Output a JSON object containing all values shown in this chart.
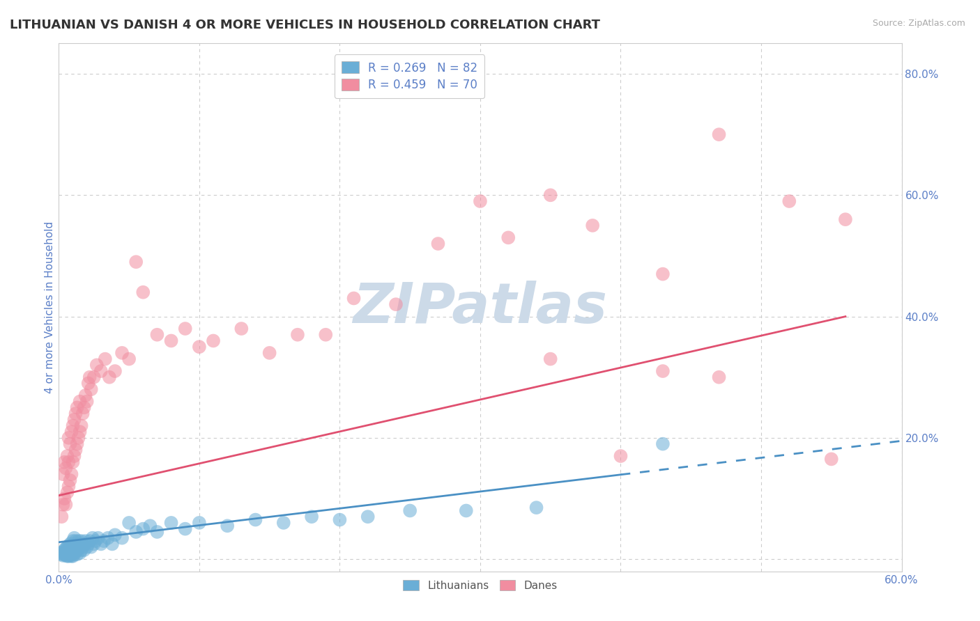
{
  "title": "LITHUANIAN VS DANISH 4 OR MORE VEHICLES IN HOUSEHOLD CORRELATION CHART",
  "source": "Source: ZipAtlas.com",
  "ylabel": "4 or more Vehicles in Household",
  "xlim": [
    0.0,
    0.6
  ],
  "ylim": [
    -0.02,
    0.85
  ],
  "xticks": [
    0.0,
    0.1,
    0.2,
    0.3,
    0.4,
    0.5,
    0.6
  ],
  "xticklabels": [
    "0.0%",
    "",
    "",
    "",
    "",
    "",
    "60.0%"
  ],
  "yticks": [
    0.0,
    0.2,
    0.4,
    0.6,
    0.8
  ],
  "yticklabels": [
    "",
    "20.0%",
    "40.0%",
    "60.0%",
    "80.0%"
  ],
  "watermark": "ZIPatlas",
  "legend_entries": [
    {
      "label": "R = 0.269   N = 82",
      "color": "#92c5de"
    },
    {
      "label": "R = 0.459   N = 70",
      "color": "#f4a9b8"
    }
  ],
  "scatter_lithuanian_x": [
    0.001,
    0.002,
    0.003,
    0.003,
    0.004,
    0.004,
    0.005,
    0.005,
    0.005,
    0.006,
    0.006,
    0.006,
    0.007,
    0.007,
    0.007,
    0.007,
    0.008,
    0.008,
    0.008,
    0.008,
    0.009,
    0.009,
    0.009,
    0.009,
    0.009,
    0.01,
    0.01,
    0.01,
    0.01,
    0.01,
    0.011,
    0.011,
    0.011,
    0.011,
    0.012,
    0.012,
    0.012,
    0.013,
    0.013,
    0.013,
    0.014,
    0.014,
    0.015,
    0.015,
    0.016,
    0.016,
    0.017,
    0.018,
    0.018,
    0.019,
    0.02,
    0.021,
    0.022,
    0.023,
    0.024,
    0.025,
    0.026,
    0.028,
    0.03,
    0.032,
    0.035,
    0.038,
    0.04,
    0.045,
    0.05,
    0.055,
    0.06,
    0.065,
    0.07,
    0.08,
    0.09,
    0.1,
    0.12,
    0.14,
    0.16,
    0.18,
    0.2,
    0.22,
    0.25,
    0.29,
    0.34,
    0.43
  ],
  "scatter_lithuanian_y": [
    0.01,
    0.008,
    0.012,
    0.006,
    0.015,
    0.008,
    0.012,
    0.006,
    0.018,
    0.01,
    0.005,
    0.02,
    0.008,
    0.015,
    0.005,
    0.022,
    0.01,
    0.006,
    0.018,
    0.025,
    0.012,
    0.008,
    0.016,
    0.005,
    0.022,
    0.01,
    0.015,
    0.005,
    0.02,
    0.03,
    0.008,
    0.015,
    0.025,
    0.035,
    0.012,
    0.02,
    0.03,
    0.015,
    0.025,
    0.008,
    0.018,
    0.03,
    0.01,
    0.025,
    0.015,
    0.03,
    0.02,
    0.025,
    0.015,
    0.03,
    0.02,
    0.025,
    0.03,
    0.02,
    0.035,
    0.025,
    0.03,
    0.035,
    0.025,
    0.03,
    0.035,
    0.025,
    0.04,
    0.035,
    0.06,
    0.045,
    0.05,
    0.055,
    0.045,
    0.06,
    0.05,
    0.06,
    0.055,
    0.065,
    0.06,
    0.07,
    0.065,
    0.07,
    0.08,
    0.08,
    0.085,
    0.19
  ],
  "scatter_danish_x": [
    0.002,
    0.003,
    0.003,
    0.004,
    0.004,
    0.005,
    0.005,
    0.006,
    0.006,
    0.007,
    0.007,
    0.007,
    0.008,
    0.008,
    0.009,
    0.009,
    0.01,
    0.01,
    0.011,
    0.011,
    0.012,
    0.012,
    0.013,
    0.013,
    0.014,
    0.015,
    0.015,
    0.016,
    0.017,
    0.018,
    0.019,
    0.02,
    0.021,
    0.022,
    0.023,
    0.025,
    0.027,
    0.03,
    0.033,
    0.036,
    0.04,
    0.045,
    0.05,
    0.055,
    0.06,
    0.07,
    0.08,
    0.09,
    0.1,
    0.11,
    0.13,
    0.15,
    0.17,
    0.19,
    0.21,
    0.24,
    0.27,
    0.3,
    0.32,
    0.35,
    0.38,
    0.43,
    0.47,
    0.52,
    0.56,
    0.43,
    0.47,
    0.35,
    0.4,
    0.55
  ],
  "scatter_danish_y": [
    0.07,
    0.09,
    0.14,
    0.1,
    0.16,
    0.09,
    0.15,
    0.11,
    0.17,
    0.12,
    0.16,
    0.2,
    0.13,
    0.19,
    0.14,
    0.21,
    0.16,
    0.22,
    0.17,
    0.23,
    0.18,
    0.24,
    0.19,
    0.25,
    0.2,
    0.21,
    0.26,
    0.22,
    0.24,
    0.25,
    0.27,
    0.26,
    0.29,
    0.3,
    0.28,
    0.3,
    0.32,
    0.31,
    0.33,
    0.3,
    0.31,
    0.34,
    0.33,
    0.49,
    0.44,
    0.37,
    0.36,
    0.38,
    0.35,
    0.36,
    0.38,
    0.34,
    0.37,
    0.37,
    0.43,
    0.42,
    0.52,
    0.59,
    0.53,
    0.6,
    0.55,
    0.47,
    0.7,
    0.59,
    0.56,
    0.31,
    0.3,
    0.33,
    0.17,
    0.165
  ],
  "trend_lit_x0": 0.0,
  "trend_lit_y0": 0.028,
  "trend_lit_x1": 0.6,
  "trend_lit_y1": 0.195,
  "trend_lit_solid_end": 0.4,
  "trend_dan_x0": 0.0,
  "trend_dan_y0": 0.105,
  "trend_dan_x1": 0.56,
  "trend_dan_y1": 0.4,
  "trend_dan_solid_end": 0.56,
  "lit_color": "#6aaed6",
  "dan_color": "#f18da0",
  "lit_line_color": "#4a90c4",
  "dan_line_color": "#e05070",
  "watermark_color": "#ccdae8",
  "background_color": "#ffffff",
  "grid_color": "#cccccc",
  "axis_label_color": "#5b7fc7",
  "tick_label_color": "#5b7fc7",
  "title_fontsize": 13,
  "axis_label_fontsize": 11,
  "tick_fontsize": 11,
  "legend_label_color": "#5b7fc7"
}
